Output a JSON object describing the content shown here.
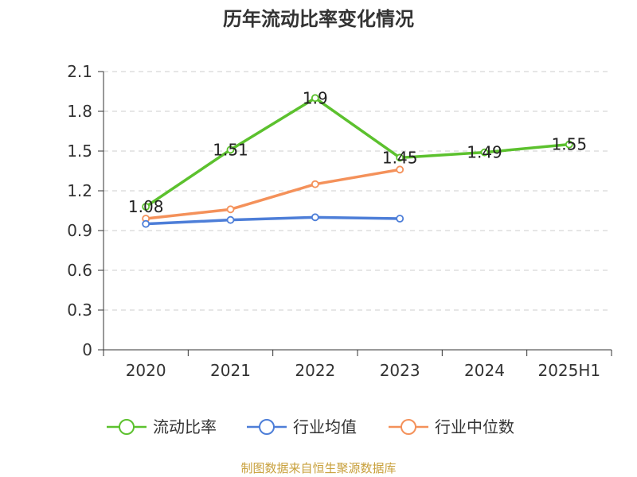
{
  "chart_data": {
    "type": "line",
    "title": "历年流动比率变化情况",
    "categories": [
      "2020",
      "2021",
      "2022",
      "2023",
      "2024",
      "2025H1"
    ],
    "ylim": [
      0,
      2.1
    ],
    "yticks": [
      "0",
      "0.3",
      "0.6",
      "0.9",
      "1.2",
      "1.5",
      "1.8",
      "2.1"
    ],
    "grid": true,
    "legend_position": "bottom",
    "series": [
      {
        "name": "流动比率",
        "color": "#5cc12e",
        "values": [
          1.08,
          1.51,
          1.9,
          1.45,
          1.49,
          1.55
        ],
        "labels": [
          "1.08",
          "1.51",
          "1.9",
          "1.45",
          "1.49",
          "1.55"
        ]
      },
      {
        "name": "行业均值",
        "color": "#4d7ed8",
        "values": [
          0.95,
          0.98,
          1.0,
          0.99,
          null,
          null
        ]
      },
      {
        "name": "行业中位数",
        "color": "#f4915a",
        "values": [
          0.99,
          1.06,
          1.25,
          1.36,
          null,
          null
        ]
      }
    ],
    "source": "制图数据来自恒生聚源数据库",
    "source_color": "#c8a03c"
  }
}
